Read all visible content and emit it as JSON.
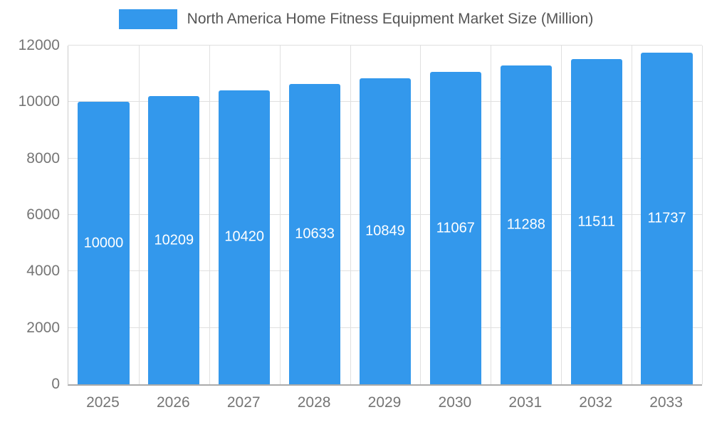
{
  "legend": {
    "label": "North America Home Fitness Equipment Market Size (Million)"
  },
  "colors": {
    "bar": "#3398EC",
    "bar_label": "#ffffff",
    "grid": "#e0e0e0",
    "axis_line": "#aaaaaa",
    "axis_text": "#757575",
    "legend_text": "#555555"
  },
  "chart_data": {
    "type": "bar",
    "title": "North America Home Fitness Equipment Market Size (Million)",
    "categories": [
      "2025",
      "2026",
      "2027",
      "2028",
      "2029",
      "2030",
      "2031",
      "2032",
      "2033"
    ],
    "values": [
      10000,
      10209,
      10420,
      10633,
      10849,
      11067,
      11288,
      11511,
      11737
    ],
    "xlabel": "",
    "ylabel": "",
    "ylim": [
      0,
      12000
    ],
    "yticks": [
      0,
      2000,
      4000,
      6000,
      8000,
      10000,
      12000
    ],
    "grid": true,
    "legend_position": "top",
    "bar_labels": true,
    "bar_label_position": "center-inside"
  }
}
